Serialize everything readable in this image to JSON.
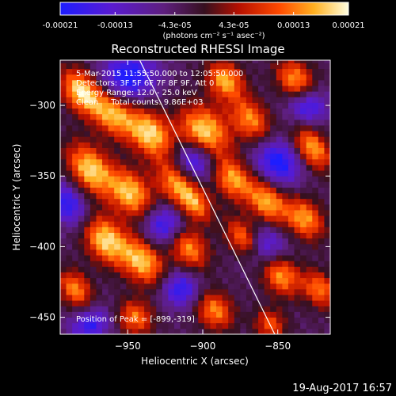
{
  "chart_data": {
    "type": "heatmap",
    "title": "Reconstructed RHESSI Image",
    "xlabel": "Heliocentric X (arcsec)",
    "ylabel": "Heliocentric Y (arcsec)",
    "xlim": [
      -995,
      -815
    ],
    "ylim": [
      -462,
      -268
    ],
    "x_ticks": [
      -950,
      -900,
      -850
    ],
    "y_ticks": [
      -300,
      -350,
      -400,
      -450
    ],
    "colorbar": {
      "min": -0.00021,
      "max": 0.00021,
      "tick_values": [
        -0.00021,
        -0.00013,
        -4.3e-05,
        4.3e-05,
        0.00013,
        0.00021
      ],
      "tick_labels": [
        "-0.00021",
        "-0.00013",
        "-4.3e-05",
        "4.3e-05",
        "0.00013",
        "0.00021"
      ],
      "unit_label": "(photons cm⁻² s⁻¹ asec⁻²)"
    },
    "info_lines": [
      "5-Mar-2015 11:55:50.000 to 12:05:50.000",
      "Detectors: 3F 5F 6F 7F 8F 9F, Att 0",
      "Energy Range: 12.0 - 25.0 keV",
      "Clean     Total counts: 9.86E+03"
    ],
    "peak_label": "Position of Peak = [-899,-319]",
    "peak": {
      "x": -899,
      "y": -319
    },
    "limb_line": [
      [
        -942,
        -268
      ],
      [
        -852,
        -462
      ]
    ],
    "blobs": [
      {
        "x": -981,
        "y": -290,
        "amp": 1.0,
        "sx": 8,
        "sy": 12
      },
      {
        "x": -960,
        "y": -305,
        "amp": 0.9,
        "sx": 9,
        "sy": 13
      },
      {
        "x": -935,
        "y": -320,
        "amp": 0.95,
        "sx": 9,
        "sy": 13
      },
      {
        "x": -899,
        "y": -319,
        "amp": 1.0,
        "sx": 11,
        "sy": 14
      },
      {
        "x": -885,
        "y": -282,
        "amp": 0.85,
        "sx": 8,
        "sy": 10
      },
      {
        "x": -868,
        "y": -310,
        "amp": 0.75,
        "sx": 8,
        "sy": 12
      },
      {
        "x": -838,
        "y": -282,
        "amp": 0.8,
        "sx": 8,
        "sy": 11
      },
      {
        "x": -827,
        "y": -330,
        "amp": 0.85,
        "sx": 7,
        "sy": 12
      },
      {
        "x": -975,
        "y": -345,
        "amp": 0.95,
        "sx": 9,
        "sy": 14
      },
      {
        "x": -948,
        "y": -362,
        "amp": 0.9,
        "sx": 9,
        "sy": 13
      },
      {
        "x": -918,
        "y": -355,
        "amp": 0.75,
        "sx": 8,
        "sy": 12
      },
      {
        "x": -905,
        "y": -370,
        "amp": 0.7,
        "sx": 7,
        "sy": 10
      },
      {
        "x": -880,
        "y": -352,
        "amp": 0.8,
        "sx": 8,
        "sy": 11
      },
      {
        "x": -857,
        "y": -368,
        "amp": 0.85,
        "sx": 8,
        "sy": 12
      },
      {
        "x": -832,
        "y": -380,
        "amp": 0.8,
        "sx": 8,
        "sy": 11
      },
      {
        "x": -965,
        "y": -395,
        "amp": 0.95,
        "sx": 9,
        "sy": 13
      },
      {
        "x": -940,
        "y": -410,
        "amp": 0.9,
        "sx": 9,
        "sy": 13
      },
      {
        "x": -910,
        "y": -400,
        "amp": 0.8,
        "sx": 8,
        "sy": 12
      },
      {
        "x": -872,
        "y": -395,
        "amp": 0.85,
        "sx": 7,
        "sy": 11
      },
      {
        "x": -848,
        "y": -420,
        "amp": 0.8,
        "sx": 8,
        "sy": 11
      },
      {
        "x": -822,
        "y": -430,
        "amp": 0.7,
        "sx": 7,
        "sy": 10
      },
      {
        "x": -985,
        "y": -430,
        "amp": 0.75,
        "sx": 7,
        "sy": 10
      },
      {
        "x": -945,
        "y": -450,
        "amp": 0.7,
        "sx": 8,
        "sy": 9
      },
      {
        "x": -892,
        "y": -445,
        "amp": 0.75,
        "sx": 8,
        "sy": 10
      },
      {
        "x": -855,
        "y": -455,
        "amp": 0.6,
        "sx": 7,
        "sy": 8
      }
    ],
    "dips": [
      {
        "x": -950,
        "y": -280,
        "amp": -0.8,
        "sx": 14,
        "sy": 12
      },
      {
        "x": -905,
        "y": -338,
        "amp": -0.75,
        "sx": 9,
        "sy": 10
      },
      {
        "x": -850,
        "y": -340,
        "amp": -0.8,
        "sx": 10,
        "sy": 12
      },
      {
        "x": -990,
        "y": -370,
        "amp": -0.7,
        "sx": 8,
        "sy": 12
      },
      {
        "x": -925,
        "y": -385,
        "amp": -0.75,
        "sx": 10,
        "sy": 10
      },
      {
        "x": -860,
        "y": -400,
        "amp": -0.7,
        "sx": 10,
        "sy": 10
      },
      {
        "x": -975,
        "y": -455,
        "amp": -0.65,
        "sx": 10,
        "sy": 8
      },
      {
        "x": -915,
        "y": -430,
        "amp": -0.7,
        "sx": 9,
        "sy": 9
      },
      {
        "x": -830,
        "y": -300,
        "amp": -0.7,
        "sx": 9,
        "sy": 9
      }
    ]
  },
  "footer": {
    "timestamp": "19-Aug-2017 16:57"
  },
  "colors": {
    "background": "#000000",
    "text": "#ffffff",
    "limb": "#ffffff"
  }
}
